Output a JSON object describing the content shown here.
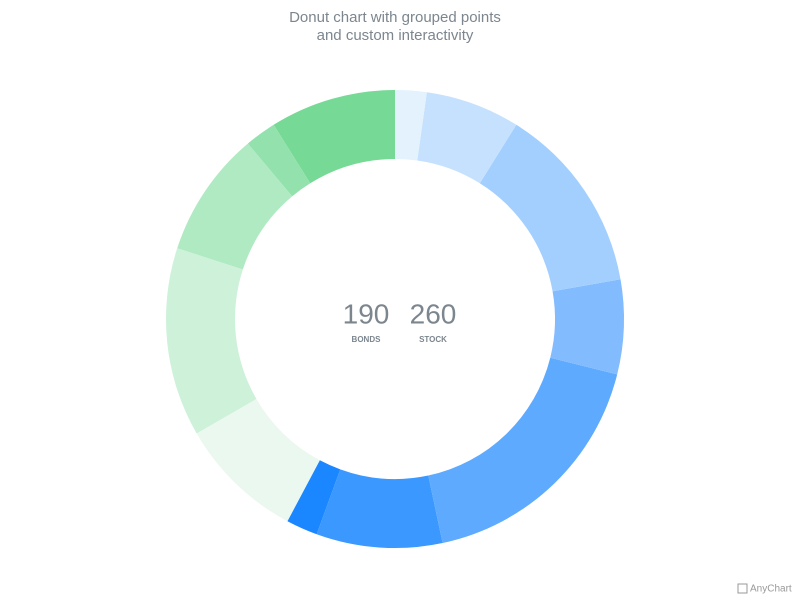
{
  "chart_data": {
    "type": "donut",
    "title": [
      "Donut chart with grouped points",
      "and custom interactivity"
    ],
    "values": [
      10,
      30,
      60,
      30,
      80,
      40,
      10,
      40,
      60,
      40,
      10,
      40
    ],
    "colors": [
      "#e3f2fd",
      "#c5e1fd",
      "#a3cfff",
      "#82bcff",
      "#5eaaff",
      "#3a98ff",
      "#1a86ff",
      "#eaf8ef",
      "#cdf1d9",
      "#b0eac3",
      "#93e2ad",
      "#77d996"
    ],
    "groups": [
      {
        "value": 190,
        "label": "BONDS"
      },
      {
        "value": 260,
        "label": "STOCK"
      }
    ],
    "credit": "AnyChart"
  }
}
